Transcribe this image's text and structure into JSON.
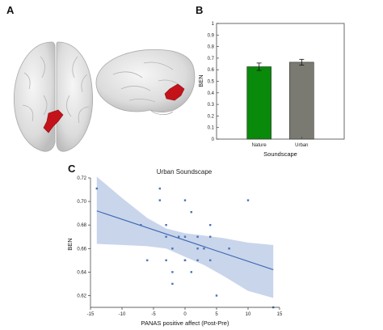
{
  "panels": {
    "a": "A",
    "b": "B",
    "c": "C"
  },
  "brain": {
    "region_color": "#c4121a"
  },
  "chart_data": [
    {
      "type": "bar",
      "panel": "B",
      "categories": [
        "Nature",
        "Urban"
      ],
      "values": [
        0.626,
        0.665
      ],
      "errors": [
        0.032,
        0.025
      ],
      "colors": [
        "#0a8a0a",
        "#7a7a72"
      ],
      "ylabel": "BEN",
      "xlabel": "Soundscape",
      "ylim": [
        0,
        1
      ],
      "yticks": [
        "0",
        "0.1",
        "0.2",
        "0.3",
        "0.4",
        "0.5",
        "0.6",
        "0.7",
        "0.8",
        "0.9",
        "1"
      ],
      "grid": false
    },
    {
      "type": "scatter",
      "panel": "C",
      "title": "Urban Soundscape",
      "xlabel": "PANAS positive affect (Post-Pre)",
      "ylabel": "BEN",
      "xlim": [
        -15,
        15
      ],
      "ylim": [
        0.61,
        0.72
      ],
      "xticks": [
        "-15",
        "-10",
        "-5",
        "0",
        "5",
        "10",
        "15"
      ],
      "yticks": [
        "0.62",
        "0.64",
        "0.66",
        "0.68",
        "0.70",
        "0.72"
      ],
      "points": [
        {
          "x": -14,
          "y": 0.711
        },
        {
          "x": -7,
          "y": 0.68
        },
        {
          "x": -6,
          "y": 0.65
        },
        {
          "x": -4,
          "y": 0.711
        },
        {
          "x": -4,
          "y": 0.701
        },
        {
          "x": -3,
          "y": 0.68
        },
        {
          "x": -3,
          "y": 0.67
        },
        {
          "x": -3,
          "y": 0.65
        },
        {
          "x": -2,
          "y": 0.66
        },
        {
          "x": -2,
          "y": 0.64
        },
        {
          "x": -2,
          "y": 0.63
        },
        {
          "x": -1,
          "y": 0.67
        },
        {
          "x": 0,
          "y": 0.701
        },
        {
          "x": 0,
          "y": 0.67
        },
        {
          "x": 0,
          "y": 0.65
        },
        {
          "x": 0,
          "y": 0.65
        },
        {
          "x": 1,
          "y": 0.691
        },
        {
          "x": 1,
          "y": 0.64
        },
        {
          "x": 2,
          "y": 0.67
        },
        {
          "x": 2,
          "y": 0.66
        },
        {
          "x": 2,
          "y": 0.65
        },
        {
          "x": 3,
          "y": 0.66
        },
        {
          "x": 4,
          "y": 0.68
        },
        {
          "x": 4,
          "y": 0.67
        },
        {
          "x": 4,
          "y": 0.65
        },
        {
          "x": 5,
          "y": 0.62
        },
        {
          "x": 7,
          "y": 0.66
        },
        {
          "x": 10,
          "y": 0.701
        },
        {
          "x": 14,
          "y": 0.61
        }
      ],
      "fit_line": {
        "x": [
          -14,
          14
        ],
        "y": [
          0.692,
          0.642
        ]
      },
      "ci_band": {
        "x": [
          -14,
          -10,
          -6,
          -3,
          0,
          3,
          6,
          10,
          14
        ],
        "upper": [
          0.721,
          0.703,
          0.686,
          0.677,
          0.673,
          0.671,
          0.669,
          0.665,
          0.663
        ],
        "lower": [
          0.664,
          0.663,
          0.662,
          0.66,
          0.653,
          0.646,
          0.637,
          0.624,
          0.618
        ]
      },
      "colors": {
        "point": "#4b72b5",
        "line": "#3d6bb3",
        "band": "#bccbe6"
      },
      "grid": false
    }
  ]
}
